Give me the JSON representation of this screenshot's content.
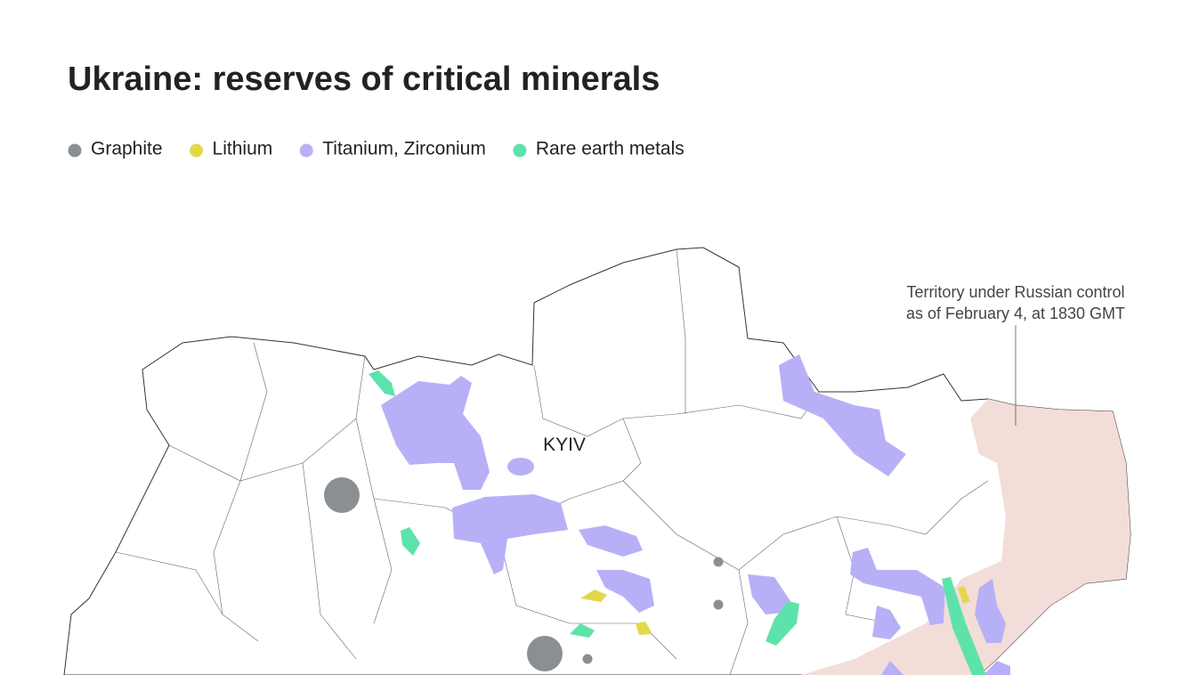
{
  "title": "Ukraine: reserves of critical minerals",
  "legend": [
    {
      "label": "Graphite",
      "color": "#8a8f93"
    },
    {
      "label": "Lithium",
      "color": "#e3d84a"
    },
    {
      "label": "Titanium, Zirconium",
      "color": "#b8b0f7"
    },
    {
      "label": "Rare earth metals",
      "color": "#5de3a9"
    }
  ],
  "territory_color": "#f2ddd8",
  "city": "KYIV",
  "annotation": [
    "Territory under Russian control",
    "as of February 4, at 1830 GMT"
  ]
}
